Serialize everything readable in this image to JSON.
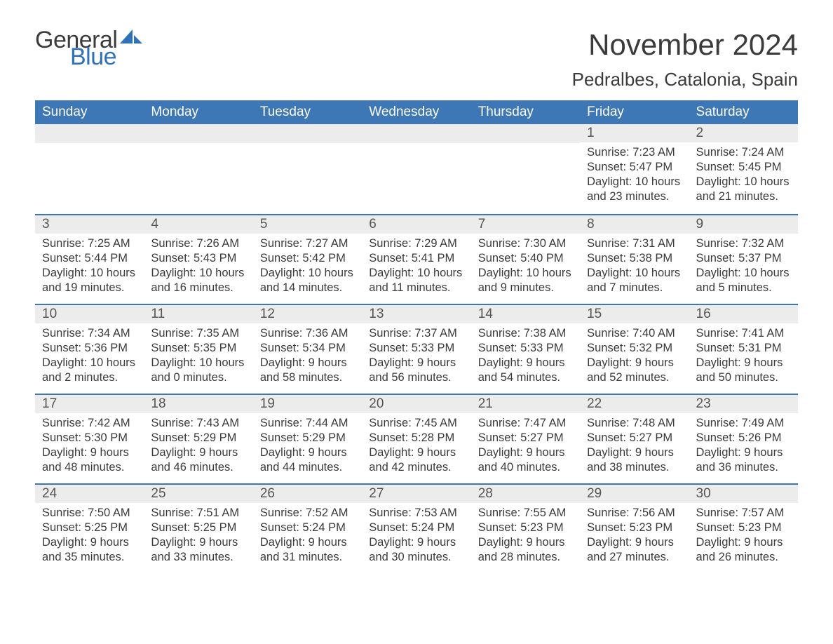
{
  "logo": {
    "text_general": "General",
    "text_blue": "Blue",
    "sail_color": "#2f72b9",
    "general_color": "#3b3b3b",
    "blue_color": "#2f72b9"
  },
  "title": "November 2024",
  "location": "Pedralbes, Catalonia, Spain",
  "header_bg": "#3e77b6",
  "header_fg": "#ffffff",
  "daynum_bg": "#ececec",
  "divider_color": "#3e77b6",
  "text_color": "#3b3b3b",
  "background_color": "#ffffff",
  "weekdays": [
    "Sunday",
    "Monday",
    "Tuesday",
    "Wednesday",
    "Thursday",
    "Friday",
    "Saturday"
  ],
  "weeks": [
    [
      null,
      null,
      null,
      null,
      null,
      {
        "n": "1",
        "sunrise": "Sunrise: 7:23 AM",
        "sunset": "Sunset: 5:47 PM",
        "daylight": "Daylight: 10 hours and 23 minutes."
      },
      {
        "n": "2",
        "sunrise": "Sunrise: 7:24 AM",
        "sunset": "Sunset: 5:45 PM",
        "daylight": "Daylight: 10 hours and 21 minutes."
      }
    ],
    [
      {
        "n": "3",
        "sunrise": "Sunrise: 7:25 AM",
        "sunset": "Sunset: 5:44 PM",
        "daylight": "Daylight: 10 hours and 19 minutes."
      },
      {
        "n": "4",
        "sunrise": "Sunrise: 7:26 AM",
        "sunset": "Sunset: 5:43 PM",
        "daylight": "Daylight: 10 hours and 16 minutes."
      },
      {
        "n": "5",
        "sunrise": "Sunrise: 7:27 AM",
        "sunset": "Sunset: 5:42 PM",
        "daylight": "Daylight: 10 hours and 14 minutes."
      },
      {
        "n": "6",
        "sunrise": "Sunrise: 7:29 AM",
        "sunset": "Sunset: 5:41 PM",
        "daylight": "Daylight: 10 hours and 11 minutes."
      },
      {
        "n": "7",
        "sunrise": "Sunrise: 7:30 AM",
        "sunset": "Sunset: 5:40 PM",
        "daylight": "Daylight: 10 hours and 9 minutes."
      },
      {
        "n": "8",
        "sunrise": "Sunrise: 7:31 AM",
        "sunset": "Sunset: 5:38 PM",
        "daylight": "Daylight: 10 hours and 7 minutes."
      },
      {
        "n": "9",
        "sunrise": "Sunrise: 7:32 AM",
        "sunset": "Sunset: 5:37 PM",
        "daylight": "Daylight: 10 hours and 5 minutes."
      }
    ],
    [
      {
        "n": "10",
        "sunrise": "Sunrise: 7:34 AM",
        "sunset": "Sunset: 5:36 PM",
        "daylight": "Daylight: 10 hours and 2 minutes."
      },
      {
        "n": "11",
        "sunrise": "Sunrise: 7:35 AM",
        "sunset": "Sunset: 5:35 PM",
        "daylight": "Daylight: 10 hours and 0 minutes."
      },
      {
        "n": "12",
        "sunrise": "Sunrise: 7:36 AM",
        "sunset": "Sunset: 5:34 PM",
        "daylight": "Daylight: 9 hours and 58 minutes."
      },
      {
        "n": "13",
        "sunrise": "Sunrise: 7:37 AM",
        "sunset": "Sunset: 5:33 PM",
        "daylight": "Daylight: 9 hours and 56 minutes."
      },
      {
        "n": "14",
        "sunrise": "Sunrise: 7:38 AM",
        "sunset": "Sunset: 5:33 PM",
        "daylight": "Daylight: 9 hours and 54 minutes."
      },
      {
        "n": "15",
        "sunrise": "Sunrise: 7:40 AM",
        "sunset": "Sunset: 5:32 PM",
        "daylight": "Daylight: 9 hours and 52 minutes."
      },
      {
        "n": "16",
        "sunrise": "Sunrise: 7:41 AM",
        "sunset": "Sunset: 5:31 PM",
        "daylight": "Daylight: 9 hours and 50 minutes."
      }
    ],
    [
      {
        "n": "17",
        "sunrise": "Sunrise: 7:42 AM",
        "sunset": "Sunset: 5:30 PM",
        "daylight": "Daylight: 9 hours and 48 minutes."
      },
      {
        "n": "18",
        "sunrise": "Sunrise: 7:43 AM",
        "sunset": "Sunset: 5:29 PM",
        "daylight": "Daylight: 9 hours and 46 minutes."
      },
      {
        "n": "19",
        "sunrise": "Sunrise: 7:44 AM",
        "sunset": "Sunset: 5:29 PM",
        "daylight": "Daylight: 9 hours and 44 minutes."
      },
      {
        "n": "20",
        "sunrise": "Sunrise: 7:45 AM",
        "sunset": "Sunset: 5:28 PM",
        "daylight": "Daylight: 9 hours and 42 minutes."
      },
      {
        "n": "21",
        "sunrise": "Sunrise: 7:47 AM",
        "sunset": "Sunset: 5:27 PM",
        "daylight": "Daylight: 9 hours and 40 minutes."
      },
      {
        "n": "22",
        "sunrise": "Sunrise: 7:48 AM",
        "sunset": "Sunset: 5:27 PM",
        "daylight": "Daylight: 9 hours and 38 minutes."
      },
      {
        "n": "23",
        "sunrise": "Sunrise: 7:49 AM",
        "sunset": "Sunset: 5:26 PM",
        "daylight": "Daylight: 9 hours and 36 minutes."
      }
    ],
    [
      {
        "n": "24",
        "sunrise": "Sunrise: 7:50 AM",
        "sunset": "Sunset: 5:25 PM",
        "daylight": "Daylight: 9 hours and 35 minutes."
      },
      {
        "n": "25",
        "sunrise": "Sunrise: 7:51 AM",
        "sunset": "Sunset: 5:25 PM",
        "daylight": "Daylight: 9 hours and 33 minutes."
      },
      {
        "n": "26",
        "sunrise": "Sunrise: 7:52 AM",
        "sunset": "Sunset: 5:24 PM",
        "daylight": "Daylight: 9 hours and 31 minutes."
      },
      {
        "n": "27",
        "sunrise": "Sunrise: 7:53 AM",
        "sunset": "Sunset: 5:24 PM",
        "daylight": "Daylight: 9 hours and 30 minutes."
      },
      {
        "n": "28",
        "sunrise": "Sunrise: 7:55 AM",
        "sunset": "Sunset: 5:23 PM",
        "daylight": "Daylight: 9 hours and 28 minutes."
      },
      {
        "n": "29",
        "sunrise": "Sunrise: 7:56 AM",
        "sunset": "Sunset: 5:23 PM",
        "daylight": "Daylight: 9 hours and 27 minutes."
      },
      {
        "n": "30",
        "sunrise": "Sunrise: 7:57 AM",
        "sunset": "Sunset: 5:23 PM",
        "daylight": "Daylight: 9 hours and 26 minutes."
      }
    ]
  ]
}
